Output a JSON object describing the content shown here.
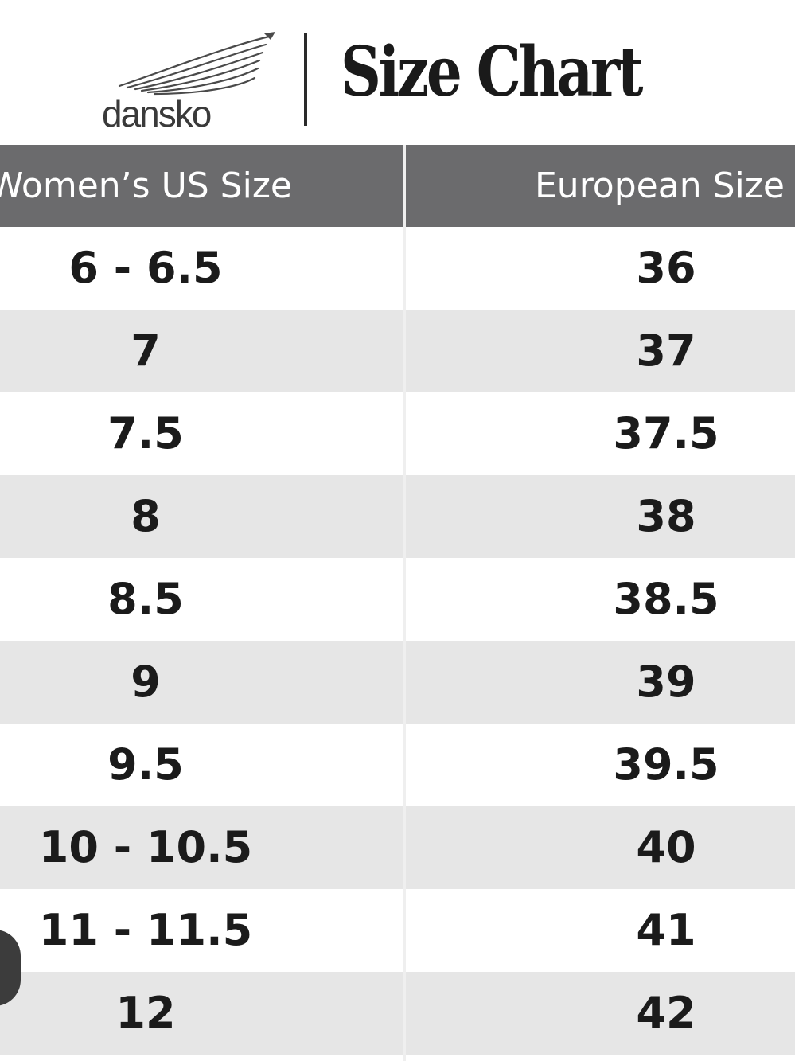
{
  "header": {
    "logo_text": "dansko",
    "title": "Size Chart"
  },
  "table": {
    "columns": [
      "Women’s US Size",
      "European Size"
    ],
    "rows": [
      {
        "us": "6 - 6.5",
        "eu": "36"
      },
      {
        "us": "7",
        "eu": "37"
      },
      {
        "us": "7.5",
        "eu": "37.5"
      },
      {
        "us": "8",
        "eu": "38"
      },
      {
        "us": "8.5",
        "eu": "38.5"
      },
      {
        "us": "9",
        "eu": "39"
      },
      {
        "us": "9.5",
        "eu": "39.5"
      },
      {
        "us": "10 - 10.5",
        "eu": "40"
      },
      {
        "us": "11 - 11.5",
        "eu": "41"
      },
      {
        "us": "12",
        "eu": "42"
      }
    ]
  },
  "colors": {
    "header_bg": "#6b6b6d",
    "row_alt_bg": "#e6e6e6",
    "text": "#1b1b1b"
  },
  "icons": {
    "logo": "dansko-wing-logo-icon",
    "scroll": "scroll-handle-icon"
  }
}
